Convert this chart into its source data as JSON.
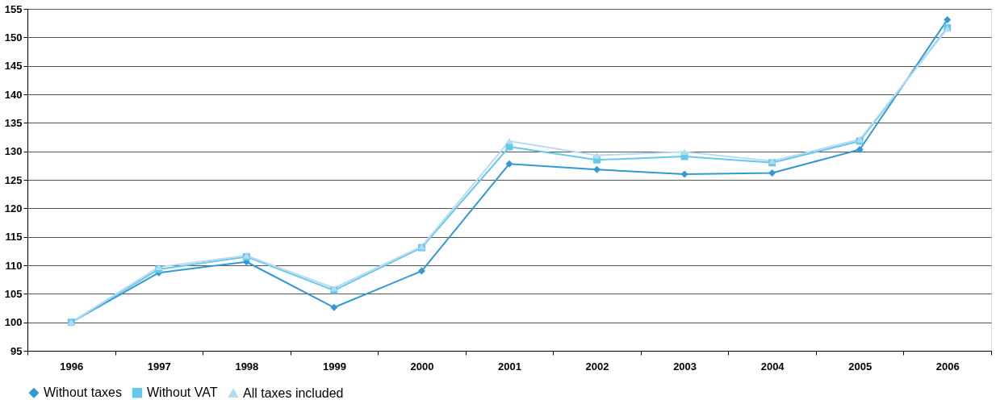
{
  "chart_data": {
    "type": "line",
    "categories": [
      "1996",
      "1997",
      "1998",
      "1999",
      "2000",
      "2001",
      "2002",
      "2003",
      "2004",
      "2005",
      "2006"
    ],
    "series": [
      {
        "name": "Without taxes",
        "color": "#3399d6",
        "marker": "diamond",
        "values": [
          100,
          108.7,
          110.6,
          102.6,
          109.0,
          127.8,
          126.8,
          126.0,
          126.2,
          130.3,
          153.1
        ]
      },
      {
        "name": "Without VAT",
        "color": "#66c8ea",
        "marker": "square",
        "values": [
          100,
          109.3,
          111.5,
          105.6,
          113.1,
          130.8,
          128.5,
          129.1,
          128.0,
          131.8,
          151.7
        ]
      },
      {
        "name": "All taxes included",
        "color": "#b7d9f1",
        "marker": "triangle",
        "values": [
          100,
          109.7,
          111.7,
          106.0,
          113.3,
          131.8,
          129.3,
          129.9,
          128.3,
          132.1,
          151.5
        ]
      }
    ],
    "ylim": [
      95,
      155
    ],
    "yticks": [
      95,
      100,
      105,
      110,
      115,
      120,
      125,
      130,
      135,
      140,
      145,
      150,
      155
    ],
    "grid": "y",
    "legend": "bottom",
    "line_style": "solid"
  }
}
